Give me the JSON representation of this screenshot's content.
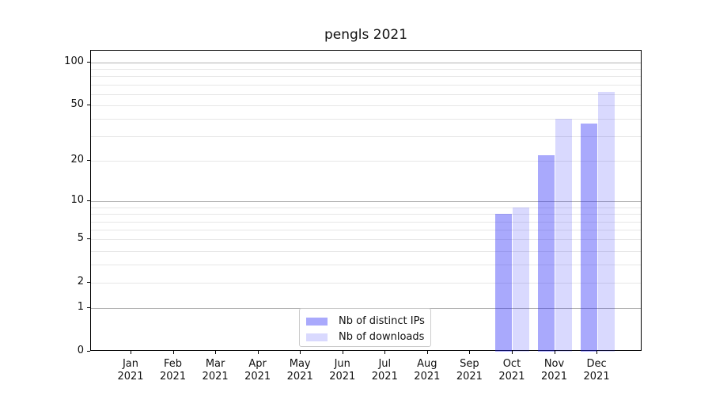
{
  "chart_data": {
    "type": "bar",
    "title": "pengls 2021",
    "categories": [
      "Jan 2021",
      "Feb 2021",
      "Mar 2021",
      "Apr 2021",
      "May 2021",
      "Jun 2021",
      "Jul 2021",
      "Aug 2021",
      "Sep 2021",
      "Oct 2021",
      "Nov 2021",
      "Dec 2021"
    ],
    "x_tick_month": [
      "Jan",
      "Feb",
      "Mar",
      "Apr",
      "May",
      "Jun",
      "Jul",
      "Aug",
      "Sep",
      "Oct",
      "Nov",
      "Dec"
    ],
    "x_tick_year": "2021",
    "series": [
      {
        "name": "Nb of distinct IPs",
        "color": "rgba(30,30,248,0.38)",
        "values": [
          0,
          0,
          0,
          0,
          0,
          0,
          0,
          0,
          0,
          8,
          22,
          37
        ]
      },
      {
        "name": "Nb of downloads",
        "color": "rgba(30,30,248,0.17)",
        "values": [
          0,
          0,
          0,
          0,
          0,
          0,
          0,
          0,
          0,
          9,
          40,
          62
        ]
      }
    ],
    "yscale": "log1p",
    "ylim": [
      0,
      121
    ],
    "y_tick_labels": [
      0,
      1,
      2,
      5,
      10,
      20,
      50,
      100
    ],
    "y_major_gridlines": [
      1,
      10,
      100
    ],
    "y_minor_gridlines": [
      2,
      3,
      4,
      5,
      6,
      7,
      8,
      9,
      20,
      30,
      40,
      50,
      60,
      70,
      80,
      90
    ],
    "grid": true,
    "legend_position": "lower center"
  },
  "colors": {
    "background": "#ffffff",
    "axis": "#000000",
    "major_grid": "#b3b3b3",
    "minor_grid": "#e7e7e7",
    "legend_border": "#cccccc",
    "bar_dark_rendered": "#a8a8f8",
    "bar_light_rendered": "#d8d8f8"
  }
}
